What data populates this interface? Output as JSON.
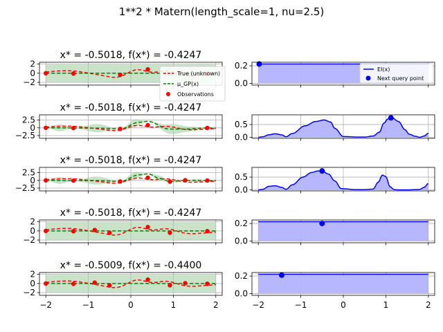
{
  "figure": {
    "suptitle": "1**2 * Matern(length_scale=1, nu=2.5)"
  },
  "colors": {
    "truth": "#ff0000",
    "mean": "#008000",
    "band": "#a3d1a3",
    "ei": "#0000ff",
    "ei_fill": "#b3b3ff",
    "grid": "#b0b0b0"
  },
  "chart_data": [
    {
      "type": "line",
      "panel": "gp",
      "row": 0,
      "title": "x* = -0.5018, f(x*) = -0.4247",
      "xlim": [
        -2.15,
        2.15
      ],
      "ylim": [
        -2.6,
        2.4
      ],
      "yticks": [
        -2,
        0,
        2
      ],
      "xticks": [
        -2,
        -1,
        0,
        1,
        2
      ],
      "show_xticklabels": false,
      "band": {
        "upper": 1.9,
        "lower": -1.9
      },
      "observations": {
        "x": [
          -2.0,
          -1.35,
          -0.25,
          0.4,
          1.8
        ],
        "y": [
          0.0,
          -0.08,
          -0.35,
          0.85,
          -0.05
        ]
      },
      "legend": [
        "True (unknown)",
        "μ_GP(x)",
        "Observations"
      ]
    },
    {
      "type": "area",
      "panel": "ei",
      "row": 0,
      "xlim": [
        -2.15,
        2.15
      ],
      "ylim": [
        -0.02,
        0.24
      ],
      "yticks": [
        0.0,
        0.2
      ],
      "xticks": [
        -2,
        -1,
        0,
        1,
        2
      ],
      "show_xticklabels": false,
      "ei_constant": 0.22,
      "next_point": {
        "x": -1.98,
        "y": 0.22
      },
      "legend": [
        "EI(x)",
        "Next query point"
      ]
    },
    {
      "type": "line",
      "panel": "gp",
      "row": 1,
      "title": "x* = -0.5018, f(x*) = -0.4247",
      "xlim": [
        -2.15,
        2.15
      ],
      "ylim": [
        -3.4,
        4.2
      ],
      "yticks": [
        -2.5,
        0.0,
        2.5
      ],
      "xticks": [
        -2,
        -1,
        0,
        1,
        2
      ],
      "show_xticklabels": false,
      "band_widths": {
        "x": [
          -2.0,
          -1.68,
          -1.35,
          -0.8,
          -0.25,
          0.07,
          0.4,
          1.0,
          1.4,
          1.8,
          2.0
        ],
        "w": [
          0.05,
          1.1,
          0.05,
          1.3,
          0.05,
          1.2,
          0.05,
          1.6,
          0.8,
          0.05,
          0.4
        ]
      },
      "mean": {
        "x": [
          -2.0,
          -1.5,
          -1.35,
          -0.8,
          -0.25,
          0.2,
          0.4,
          0.9,
          1.3,
          1.8,
          2.0
        ],
        "y": [
          0.0,
          -0.02,
          -0.08,
          -0.1,
          -0.35,
          1.8,
          2.1,
          -0.4,
          -0.4,
          -0.05,
          -0.1
        ]
      },
      "observations": {
        "x": [
          -2.0,
          -1.35,
          -0.25,
          0.4,
          1.8
        ],
        "y": [
          0.0,
          -0.08,
          -0.35,
          0.85,
          -0.05
        ]
      }
    },
    {
      "type": "area",
      "panel": "ei",
      "row": 1,
      "xlim": [
        -2.15,
        2.15
      ],
      "ylim": [
        -0.04,
        0.88
      ],
      "yticks": [
        0.0,
        0.5
      ],
      "xticks": [
        -2,
        -1,
        0,
        1,
        2
      ],
      "show_xticklabels": false,
      "ei": {
        "x": [
          -2.0,
          -1.9,
          -1.75,
          -1.6,
          -1.45,
          -1.35,
          -1.2,
          -0.9,
          -0.65,
          -0.45,
          -0.3,
          -0.2,
          0.0,
          0.35,
          0.5,
          0.7,
          0.85,
          0.95,
          1.05,
          1.15,
          1.3,
          1.45,
          1.55,
          1.7,
          1.8,
          1.9,
          2.0
        ],
        "y": [
          0.0,
          0.02,
          0.1,
          0.14,
          0.1,
          0.02,
          0.15,
          0.45,
          0.62,
          0.68,
          0.6,
          0.35,
          0.03,
          0.01,
          0.01,
          0.05,
          0.2,
          0.55,
          0.72,
          0.76,
          0.62,
          0.3,
          0.12,
          0.04,
          0.0,
          0.05,
          0.16
        ]
      },
      "next_point": {
        "x": 1.12,
        "y": 0.76
      }
    },
    {
      "type": "line",
      "panel": "gp",
      "row": 2,
      "title": "x* = -0.5018, f(x*) = -0.4247",
      "xlim": [
        -2.15,
        2.15
      ],
      "ylim": [
        -3.4,
        4.2
      ],
      "yticks": [
        -2.5,
        0.0,
        2.5
      ],
      "xticks": [
        -2,
        -1,
        0,
        1,
        2
      ],
      "show_xticklabels": false,
      "band_widths": {
        "x": [
          -2.0,
          -1.68,
          -1.35,
          -0.8,
          -0.25,
          0.07,
          0.4,
          0.65,
          0.92,
          1.1,
          1.28,
          1.55,
          1.8,
          2.0
        ],
        "w": [
          0.05,
          1.1,
          0.05,
          1.3,
          0.05,
          1.2,
          0.05,
          0.9,
          0.05,
          0.5,
          0.05,
          0.5,
          0.05,
          0.4
        ]
      },
      "mean": {
        "x": [
          -2.0,
          -1.35,
          -0.8,
          -0.25,
          0.2,
          0.4,
          0.7,
          0.92,
          1.28,
          1.8,
          2.0
        ],
        "y": [
          0.0,
          -0.08,
          -0.05,
          -0.35,
          1.8,
          2.1,
          0.6,
          -0.4,
          0.0,
          -0.05,
          -0.1
        ]
      },
      "observations": {
        "x": [
          -2.0,
          -1.35,
          -0.25,
          0.4,
          0.92,
          1.28,
          1.8
        ],
        "y": [
          0.0,
          -0.08,
          -0.35,
          0.85,
          -0.4,
          0.05,
          -0.05
        ]
      }
    },
    {
      "type": "area",
      "panel": "ei",
      "row": 2,
      "xlim": [
        -2.15,
        2.15
      ],
      "ylim": [
        -0.04,
        0.88
      ],
      "yticks": [
        0.0,
        0.5
      ],
      "xticks": [
        -2,
        -1,
        0,
        1,
        2
      ],
      "show_xticklabels": false,
      "ei": {
        "x": [
          -2.0,
          -1.9,
          -1.75,
          -1.6,
          -1.45,
          -1.35,
          -1.2,
          -0.95,
          -0.75,
          -0.6,
          -0.5,
          -0.35,
          -0.2,
          -0.05,
          0.3,
          0.5,
          0.7,
          0.82,
          0.92,
          1.0,
          1.1,
          1.2,
          1.3,
          1.5,
          1.7,
          1.8,
          1.9,
          2.0
        ],
        "y": [
          0.0,
          0.02,
          0.14,
          0.16,
          0.1,
          0.02,
          0.2,
          0.5,
          0.68,
          0.74,
          0.74,
          0.62,
          0.35,
          0.05,
          0.01,
          0.01,
          0.03,
          0.3,
          0.58,
          0.52,
          0.12,
          0.01,
          0.0,
          0.0,
          0.01,
          0.02,
          0.1,
          0.25
        ]
      },
      "next_point": {
        "x": -0.5,
        "y": 0.74
      }
    },
    {
      "type": "line",
      "panel": "gp",
      "row": 3,
      "title": "x* = -0.5018, f(x*) = -0.4247",
      "xlim": [
        -2.15,
        2.15
      ],
      "ylim": [
        -2.6,
        2.4
      ],
      "yticks": [
        -2,
        0,
        2
      ],
      "xticks": [
        -2,
        -1,
        0,
        1,
        2
      ],
      "show_xticklabels": false,
      "band": {
        "upper": 1.9,
        "lower": -1.9
      },
      "observations": {
        "x": [
          -2.0,
          -1.35,
          -0.85,
          -0.5,
          0.4,
          0.92,
          1.8
        ],
        "y": [
          0.0,
          -0.08,
          0.2,
          -0.42,
          0.85,
          -0.4,
          -0.05
        ]
      }
    },
    {
      "type": "area",
      "panel": "ei",
      "row": 3,
      "xlim": [
        -2.15,
        2.15
      ],
      "ylim": [
        -0.02,
        0.24
      ],
      "yticks": [
        0.0,
        0.2
      ],
      "xticks": [
        -2,
        -1,
        0,
        1,
        2
      ],
      "show_xticklabels": false,
      "ei_constant": 0.22,
      "next_point": {
        "x": -0.5,
        "y": 0.2
      }
    },
    {
      "type": "line",
      "panel": "gp",
      "row": 4,
      "title": "x* = -0.5009, f(x*) = -0.4400",
      "xlim": [
        -2.15,
        2.15
      ],
      "ylim": [
        -2.6,
        2.4
      ],
      "yticks": [
        -2,
        0,
        2
      ],
      "xticks": [
        -2,
        -1,
        0,
        1,
        2
      ],
      "show_xticklabels": true,
      "band": {
        "upper": 1.9,
        "lower": -1.9
      },
      "observations": {
        "x": [
          -2.0,
          -1.35,
          -0.85,
          -0.5,
          0.4,
          0.92,
          1.28,
          1.8
        ],
        "y": [
          0.0,
          -0.08,
          0.2,
          -0.42,
          0.85,
          -0.4,
          0.05,
          -0.05
        ]
      }
    },
    {
      "type": "area",
      "panel": "ei",
      "row": 4,
      "xlim": [
        -2.15,
        2.15
      ],
      "ylim": [
        -0.02,
        0.24
      ],
      "yticks": [
        0.0,
        0.2
      ],
      "xticks": [
        -2,
        -1,
        0,
        1,
        2
      ],
      "show_xticklabels": true,
      "ei_constant": 0.22,
      "next_point": {
        "x": -1.45,
        "y": 0.21
      }
    }
  ]
}
